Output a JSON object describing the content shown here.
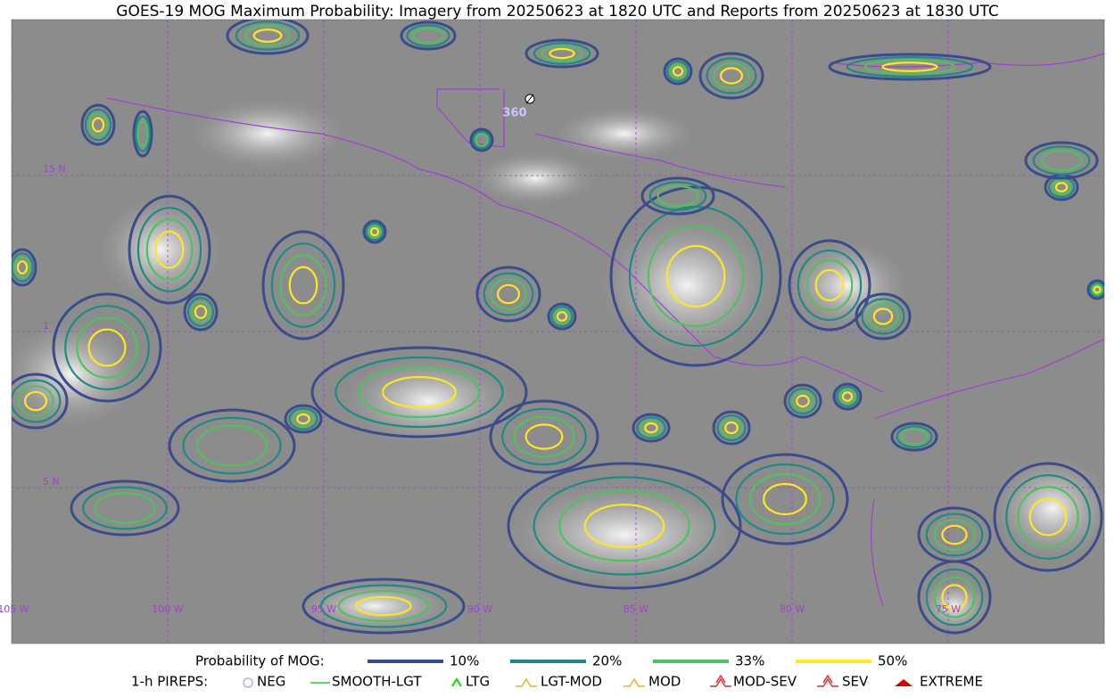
{
  "title": "GOES-19 MOG Maximum Probability: Imagery from 20250623 at 1820 UTC and Reports from 20250623 at 1830 UTC",
  "map": {
    "lat_labels": [
      "15 N",
      "1",
      "5 N"
    ],
    "lon_labels": [
      "105 W",
      "100 W",
      "95 W",
      "90 W",
      "85 W",
      "80 W",
      "75 W"
    ],
    "report": {
      "label": "360"
    }
  },
  "legend": {
    "probability": {
      "label": "Probability of MOG:",
      "items": [
        {
          "label": "10%",
          "color": "#3b4b8c"
        },
        {
          "label": "20%",
          "color": "#1f8a84"
        },
        {
          "label": "33%",
          "color": "#4fc160"
        },
        {
          "label": "50%",
          "color": "#fde724"
        }
      ]
    },
    "pireps": {
      "label": "1-h PIREPS:",
      "items": [
        {
          "label": "NEG",
          "color": "#b0b0ff"
        },
        {
          "label": "SMOOTH-LGT",
          "color": "#33cc33"
        },
        {
          "label": "LTG",
          "color": "#00dd00"
        },
        {
          "label": "LGT-MOD",
          "color": "#f0b020"
        },
        {
          "label": "MOD",
          "color": "#f0b020"
        },
        {
          "label": "MOD-SEV",
          "color": "#e03030"
        },
        {
          "label": "SEV",
          "color": "#e03030"
        },
        {
          "label": "EXTREME",
          "color": "#e00000"
        }
      ]
    }
  }
}
